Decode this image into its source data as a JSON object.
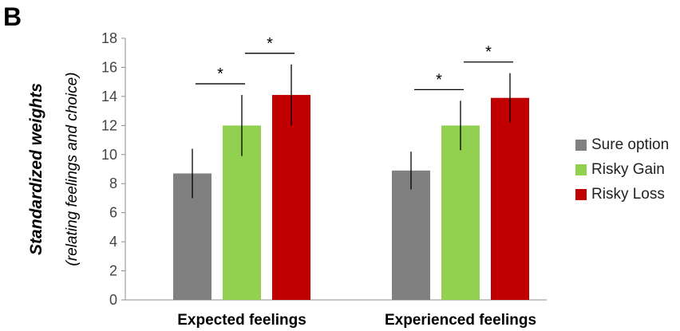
{
  "panel_label": "B",
  "chart_data": {
    "type": "bar",
    "categories": [
      "Expected feelings",
      "Experienced feelings"
    ],
    "series": [
      {
        "name": "Sure option",
        "color": "#808080",
        "values": [
          8.7,
          8.9
        ],
        "error": [
          1.7,
          1.3
        ]
      },
      {
        "name": "Risky Gain",
        "color": "#92d050",
        "values": [
          12.0,
          12.0
        ],
        "error": [
          2.1,
          1.7
        ]
      },
      {
        "name": "Risky Loss",
        "color": "#c00000",
        "values": [
          14.1,
          13.9
        ],
        "error": [
          2.1,
          1.7
        ]
      }
    ],
    "ylabel": "Standardized weights",
    "ylabel_sub": "(relating feelings and choice)",
    "xlabel": "",
    "ylim": [
      0,
      18
    ],
    "yticks": [
      "0",
      "2",
      "4",
      "6",
      "8",
      "10",
      "12",
      "14",
      "16",
      "18"
    ],
    "legend_position": "right",
    "grid": false,
    "significance": [
      {
        "group": 0,
        "from": 0,
        "to": 1,
        "label": "*"
      },
      {
        "group": 0,
        "from": 1,
        "to": 2,
        "label": "*"
      },
      {
        "group": 1,
        "from": 0,
        "to": 1,
        "label": "*"
      },
      {
        "group": 1,
        "from": 1,
        "to": 2,
        "label": "*"
      }
    ]
  }
}
